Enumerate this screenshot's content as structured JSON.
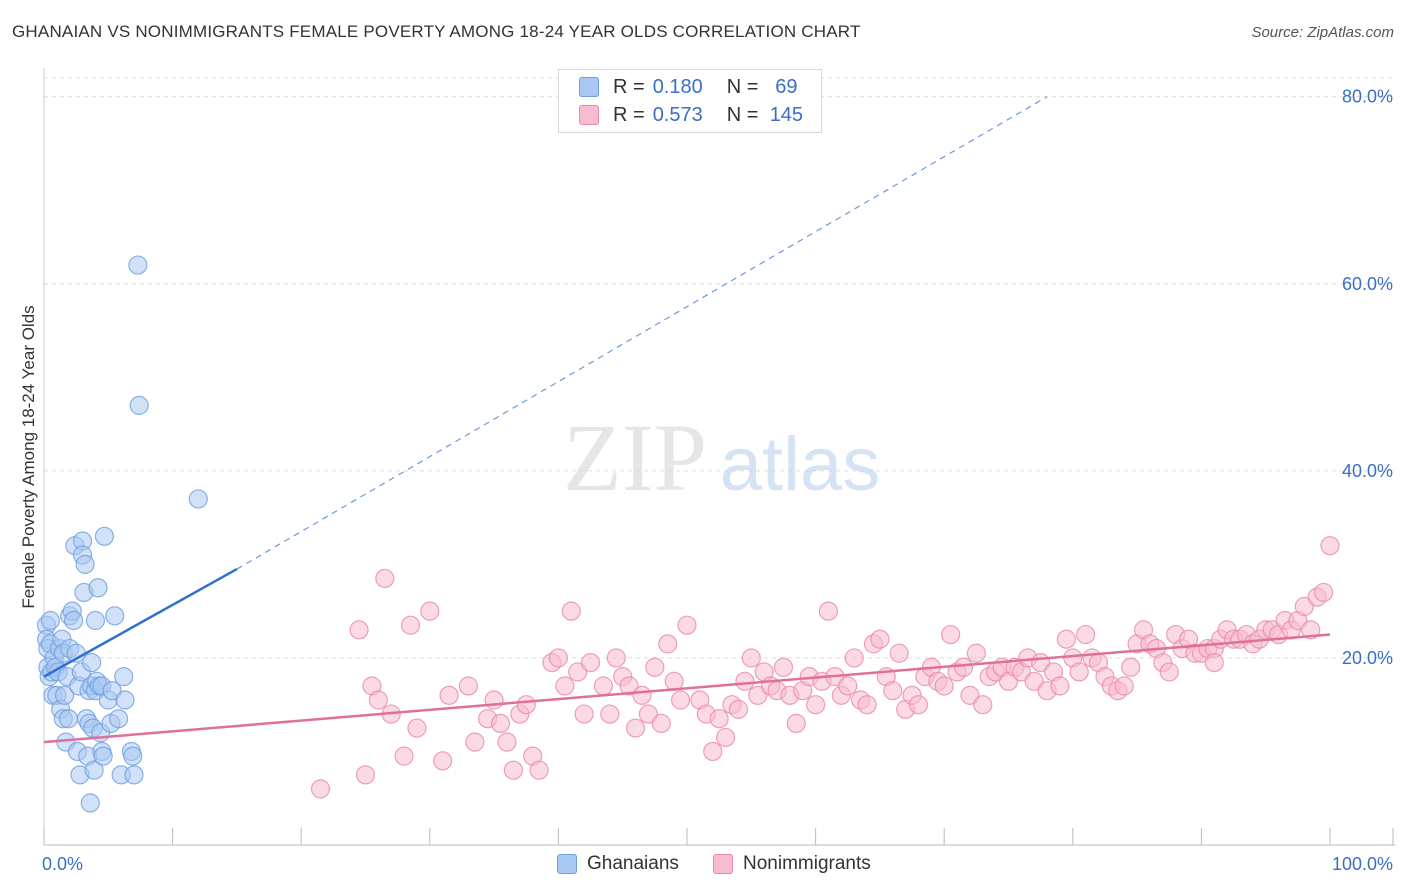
{
  "title": "GHANAIAN VS NONIMMIGRANTS FEMALE POVERTY AMONG 18-24 YEAR OLDS CORRELATION CHART",
  "source": "Source: ZipAtlas.com",
  "watermark": {
    "zip": "ZIP",
    "atlas": "atlas"
  },
  "legend": {
    "rows": [
      {
        "label": "R =",
        "r": "0.180",
        "n_label": "N =",
        "n": "69",
        "color": "#a9c8f3",
        "border": "#6f9fe0"
      },
      {
        "label": "R =",
        "r": "0.573",
        "n_label": "N =",
        "n": "145",
        "color": "#f7bccd",
        "border": "#e98aa8"
      }
    ]
  },
  "bottom_legend": {
    "items": [
      {
        "label": "Ghanaians",
        "color": "#a9c8f3",
        "border": "#6f9fe0"
      },
      {
        "label": "Nonimmigrants",
        "color": "#f7bccd",
        "border": "#e98aa8"
      }
    ]
  },
  "chart_data": {
    "type": "scatter",
    "ylabel": "Female Poverty Among 18-24 Year Olds",
    "xlim": [
      0,
      100
    ],
    "ylim": [
      0,
      82
    ],
    "x_tick_labels": [
      "0.0%",
      "100.0%"
    ],
    "y_ticks": [
      20,
      40,
      60,
      80
    ],
    "y_tick_labels": [
      "20.0%",
      "40.0%",
      "60.0%",
      "80.0%"
    ],
    "grid": true,
    "series": [
      {
        "name": "Ghanaians",
        "color": "#a9c8f3",
        "stroke": "#6f9fe0",
        "trend_color": "#2f6fd0",
        "trend": {
          "x0": 0,
          "y0": 18,
          "x1": 15,
          "y1": 29.5,
          "dash_to_x": 78,
          "dash_to_y": 80
        },
        "points": [
          [
            0.2,
            23.5
          ],
          [
            0.2,
            22
          ],
          [
            0.3,
            21
          ],
          [
            0.3,
            19
          ],
          [
            0.4,
            18
          ],
          [
            0.5,
            24
          ],
          [
            0.5,
            21.5
          ],
          [
            0.6,
            18.5
          ],
          [
            0.7,
            16
          ],
          [
            0.8,
            20
          ],
          [
            0.9,
            19
          ],
          [
            1,
            16
          ],
          [
            1.1,
            18.5
          ],
          [
            1.2,
            21
          ],
          [
            1.3,
            14.5
          ],
          [
            1.4,
            22
          ],
          [
            1.5,
            20.5
          ],
          [
            1.5,
            13.5
          ],
          [
            1.6,
            16
          ],
          [
            1.7,
            11
          ],
          [
            1.8,
            18
          ],
          [
            1.9,
            13.5
          ],
          [
            2,
            21
          ],
          [
            2,
            24.5
          ],
          [
            2.2,
            25
          ],
          [
            2.3,
            24
          ],
          [
            2.4,
            32
          ],
          [
            2.5,
            20.5
          ],
          [
            2.6,
            10
          ],
          [
            2.7,
            17
          ],
          [
            2.8,
            7.5
          ],
          [
            2.9,
            18.5
          ],
          [
            3,
            32.5
          ],
          [
            3,
            31
          ],
          [
            3.1,
            27
          ],
          [
            3.2,
            30
          ],
          [
            3.3,
            13.5
          ],
          [
            3.4,
            9.5
          ],
          [
            3.5,
            13
          ],
          [
            3.5,
            16.5
          ],
          [
            3.6,
            4.5
          ],
          [
            3.7,
            17
          ],
          [
            3.7,
            19.5
          ],
          [
            3.8,
            12.5
          ],
          [
            3.9,
            8
          ],
          [
            4,
            16.5
          ],
          [
            4,
            24
          ],
          [
            4.1,
            17.5
          ],
          [
            4.2,
            27.5
          ],
          [
            4.3,
            17
          ],
          [
            4.4,
            12
          ],
          [
            4.5,
            10
          ],
          [
            4.5,
            17
          ],
          [
            4.6,
            9.5
          ],
          [
            4.7,
            33
          ],
          [
            5,
            15.5
          ],
          [
            5.2,
            13
          ],
          [
            5.3,
            16.5
          ],
          [
            5.5,
            24.5
          ],
          [
            5.8,
            13.5
          ],
          [
            6,
            7.5
          ],
          [
            6.2,
            18
          ],
          [
            6.3,
            15.5
          ],
          [
            6.8,
            10
          ],
          [
            7,
            7.5
          ],
          [
            6.9,
            9.5
          ],
          [
            7.4,
            47
          ],
          [
            7.3,
            62
          ],
          [
            12,
            37
          ]
        ]
      },
      {
        "name": "Nonimmigrants",
        "color": "#f7bccd",
        "stroke": "#e98aa8",
        "trend_color": "#e0709a",
        "trend": {
          "x0": 0,
          "y0": 11,
          "x1": 100,
          "y1": 22.5
        },
        "points": [
          [
            21.5,
            6
          ],
          [
            24.5,
            23
          ],
          [
            25,
            7.5
          ],
          [
            25.5,
            17
          ],
          [
            26,
            15.5
          ],
          [
            26.5,
            28.5
          ],
          [
            27,
            14
          ],
          [
            28,
            9.5
          ],
          [
            28.5,
            23.5
          ],
          [
            29,
            12.5
          ],
          [
            30,
            25
          ],
          [
            31,
            9
          ],
          [
            31.5,
            16
          ],
          [
            33,
            17
          ],
          [
            33.5,
            11
          ],
          [
            34.5,
            13.5
          ],
          [
            35,
            15.5
          ],
          [
            35.5,
            13
          ],
          [
            36,
            11
          ],
          [
            36.5,
            8
          ],
          [
            37,
            14
          ],
          [
            37.5,
            15
          ],
          [
            38,
            9.5
          ],
          [
            38.5,
            8
          ],
          [
            39.5,
            19.5
          ],
          [
            40,
            20
          ],
          [
            40.5,
            17
          ],
          [
            41,
            25
          ],
          [
            41.5,
            18.5
          ],
          [
            42,
            14
          ],
          [
            42.5,
            19.5
          ],
          [
            43.5,
            17
          ],
          [
            44,
            14
          ],
          [
            44.5,
            20
          ],
          [
            45,
            18
          ],
          [
            45.5,
            17
          ],
          [
            46,
            12.5
          ],
          [
            46.5,
            16
          ],
          [
            47,
            14
          ],
          [
            47.5,
            19
          ],
          [
            48,
            13
          ],
          [
            48.5,
            21.5
          ],
          [
            49,
            17.5
          ],
          [
            49.5,
            15.5
          ],
          [
            50,
            23.5
          ],
          [
            51,
            15.5
          ],
          [
            51.5,
            14
          ],
          [
            52,
            10
          ],
          [
            52.5,
            13.5
          ],
          [
            53,
            11.5
          ],
          [
            53.5,
            15
          ],
          [
            54,
            14.5
          ],
          [
            54.5,
            17.5
          ],
          [
            55,
            20
          ],
          [
            55.5,
            16
          ],
          [
            56,
            18.5
          ],
          [
            56.5,
            17
          ],
          [
            57,
            16.5
          ],
          [
            57.5,
            19
          ],
          [
            58,
            16
          ],
          [
            58.5,
            13
          ],
          [
            59,
            16.5
          ],
          [
            59.5,
            18
          ],
          [
            60,
            15
          ],
          [
            60.5,
            17.5
          ],
          [
            61,
            25
          ],
          [
            61.5,
            18
          ],
          [
            62,
            16
          ],
          [
            62.5,
            17
          ],
          [
            63,
            20
          ],
          [
            63.5,
            15.5
          ],
          [
            64,
            15
          ],
          [
            64.5,
            21.5
          ],
          [
            65,
            22
          ],
          [
            65.5,
            18
          ],
          [
            66,
            16.5
          ],
          [
            66.5,
            20.5
          ],
          [
            67,
            14.5
          ],
          [
            67.5,
            16
          ],
          [
            68,
            15
          ],
          [
            68.5,
            18
          ],
          [
            69,
            19
          ],
          [
            69.5,
            17.5
          ],
          [
            70,
            17
          ],
          [
            70.5,
            22.5
          ],
          [
            71,
            18.5
          ],
          [
            71.5,
            19
          ],
          [
            72,
            16
          ],
          [
            72.5,
            20.5
          ],
          [
            73,
            15
          ],
          [
            73.5,
            18
          ],
          [
            74,
            18.5
          ],
          [
            74.5,
            19
          ],
          [
            75,
            17.5
          ],
          [
            75.5,
            19
          ],
          [
            76,
            18.5
          ],
          [
            76.5,
            20
          ],
          [
            77,
            17.5
          ],
          [
            77.5,
            19.5
          ],
          [
            78,
            16.5
          ],
          [
            78.5,
            18.5
          ],
          [
            79,
            17
          ],
          [
            79.5,
            22
          ],
          [
            80,
            20
          ],
          [
            80.5,
            18.5
          ],
          [
            81,
            22.5
          ],
          [
            81.5,
            20
          ],
          [
            82,
            19.5
          ],
          [
            82.5,
            18
          ],
          [
            83,
            17
          ],
          [
            83.5,
            16.5
          ],
          [
            84,
            17
          ],
          [
            84.5,
            19
          ],
          [
            85,
            21.5
          ],
          [
            85.5,
            23
          ],
          [
            86,
            21.5
          ],
          [
            86.5,
            21
          ],
          [
            87,
            19.5
          ],
          [
            87.5,
            18.5
          ],
          [
            88,
            22.5
          ],
          [
            88.5,
            21
          ],
          [
            89,
            22
          ],
          [
            89.5,
            20.5
          ],
          [
            90,
            20.5
          ],
          [
            90.5,
            21
          ],
          [
            91,
            21
          ],
          [
            91.5,
            22
          ],
          [
            92,
            23
          ],
          [
            92.5,
            22
          ],
          [
            93,
            22
          ],
          [
            93.5,
            22.5
          ],
          [
            94,
            21.5
          ],
          [
            94.5,
            22
          ],
          [
            95,
            23
          ],
          [
            95.5,
            23
          ],
          [
            96,
            22.5
          ],
          [
            96.5,
            24
          ],
          [
            97,
            23
          ],
          [
            97.5,
            24
          ],
          [
            98,
            25.5
          ],
          [
            98.5,
            23
          ],
          [
            99,
            26.5
          ],
          [
            99.5,
            27
          ],
          [
            100,
            32
          ],
          [
            91,
            19.5
          ]
        ]
      }
    ]
  }
}
